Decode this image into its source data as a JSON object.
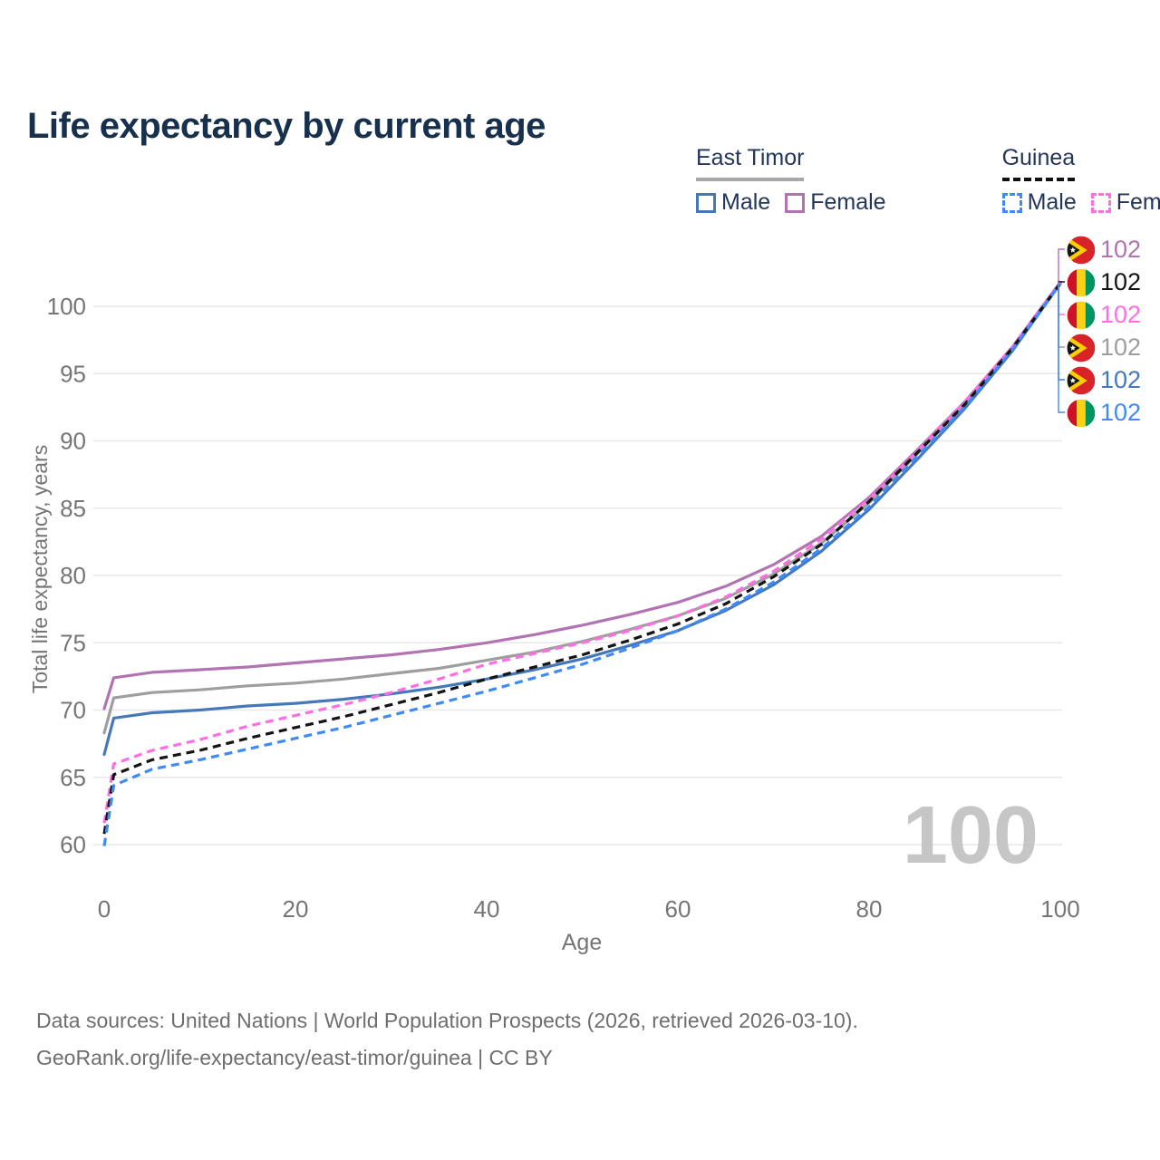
{
  "title": "Life expectancy by current age",
  "legend": {
    "groups": [
      {
        "label": "East Timor",
        "style": "solid",
        "entries": [
          {
            "label": "Male",
            "color": "#4478b9"
          },
          {
            "label": "Female",
            "color": "#b273b2"
          }
        ]
      },
      {
        "label": "Guinea",
        "style": "dashed",
        "entries": [
          {
            "label": "Male",
            "color": "#3f8af8"
          },
          {
            "label": "Female",
            "color": "#ff6ee3"
          }
        ]
      }
    ]
  },
  "chart_data": {
    "type": "line",
    "title": "Life expectancy by current age",
    "xlabel": "Age",
    "ylabel": "Total life expectancy, years",
    "xlim": [
      0,
      100
    ],
    "ylim": [
      60,
      102
    ],
    "xticks": [
      0,
      20,
      40,
      60,
      80,
      100
    ],
    "yticks": [
      60,
      65,
      70,
      75,
      80,
      85,
      90,
      95,
      100
    ],
    "grid": "horizontal",
    "legend_position": "top-right",
    "x": [
      0,
      1,
      5,
      10,
      15,
      20,
      25,
      30,
      35,
      40,
      45,
      50,
      55,
      60,
      65,
      70,
      75,
      80,
      85,
      90,
      95,
      100
    ],
    "series": [
      {
        "name": "East Timor Female",
        "country": "East Timor",
        "sex": "Female",
        "color": "#b273b2",
        "dash": "solid",
        "values": [
          70.1,
          72.4,
          72.8,
          73.0,
          73.2,
          73.5,
          73.8,
          74.1,
          74.5,
          75.0,
          75.6,
          76.3,
          77.1,
          78.0,
          79.2,
          80.8,
          82.9,
          85.8,
          89.3,
          92.9,
          97.0,
          101.8
        ]
      },
      {
        "name": "East Timor Both sexes",
        "country": "East Timor",
        "sex": "Both",
        "color": "#9e9e9e",
        "dash": "solid",
        "values": [
          68.3,
          70.9,
          71.3,
          71.5,
          71.8,
          72.0,
          72.3,
          72.7,
          73.1,
          73.7,
          74.3,
          75.1,
          76.0,
          77.0,
          78.3,
          80.1,
          82.4,
          85.4,
          89.0,
          92.7,
          96.9,
          101.7
        ]
      },
      {
        "name": "East Timor Male",
        "country": "East Timor",
        "sex": "Male",
        "color": "#4478b9",
        "dash": "solid",
        "values": [
          66.7,
          69.4,
          69.8,
          70.0,
          70.3,
          70.5,
          70.8,
          71.2,
          71.7,
          72.3,
          73.0,
          73.8,
          74.8,
          75.9,
          77.4,
          79.3,
          81.8,
          84.9,
          88.6,
          92.4,
          96.7,
          101.7
        ]
      },
      {
        "name": "Guinea Female",
        "country": "Guinea",
        "sex": "Female",
        "color": "#ff6ee3",
        "dash": "dashed",
        "values": [
          61.6,
          66.0,
          67.0,
          67.8,
          68.8,
          69.6,
          70.4,
          71.3,
          72.3,
          73.4,
          74.2,
          75.0,
          75.9,
          77.0,
          78.4,
          80.3,
          82.7,
          85.7,
          89.2,
          92.9,
          97.0,
          101.8
        ]
      },
      {
        "name": "Guinea Both sexes",
        "country": "Guinea",
        "sex": "Both",
        "color": "#141414",
        "dash": "dashed",
        "values": [
          60.8,
          65.2,
          66.3,
          67.0,
          67.9,
          68.7,
          69.5,
          70.4,
          71.3,
          72.3,
          73.2,
          74.1,
          75.2,
          76.4,
          77.9,
          79.9,
          82.3,
          85.5,
          89.1,
          92.7,
          96.9,
          101.7
        ]
      },
      {
        "name": "Guinea Male",
        "country": "Guinea",
        "sex": "Male",
        "color": "#3f8af8",
        "dash": "dashed",
        "values": [
          59.9,
          64.4,
          65.6,
          66.3,
          67.1,
          67.9,
          68.7,
          69.6,
          70.5,
          71.4,
          72.4,
          73.4,
          74.6,
          75.9,
          77.5,
          79.5,
          82.0,
          85.1,
          88.8,
          92.5,
          96.8,
          101.7
        ]
      }
    ],
    "end_labels": [
      {
        "flag": "east-timor",
        "value": "102",
        "color": "#b273b2",
        "series": "East Timor Female"
      },
      {
        "flag": "guinea",
        "value": "102",
        "color": "#141414",
        "series": "Guinea Both sexes"
      },
      {
        "flag": "guinea",
        "value": "102",
        "color": "#ff6ee3",
        "series": "Guinea Female"
      },
      {
        "flag": "east-timor",
        "value": "102",
        "color": "#9e9e9e",
        "series": "East Timor Both sexes"
      },
      {
        "flag": "east-timor",
        "value": "102",
        "color": "#4478b9",
        "series": "East Timor Male"
      },
      {
        "flag": "guinea",
        "value": "102",
        "color": "#3f8af8",
        "series": "Guinea Male"
      }
    ],
    "watermark": "100"
  },
  "footer": {
    "line1": "Data sources: United Nations | World Population Prospects (2026, retrieved 2026-03-10).",
    "line2": "GeoRank.org/life-expectancy/east-timor/guinea | CC BY"
  }
}
